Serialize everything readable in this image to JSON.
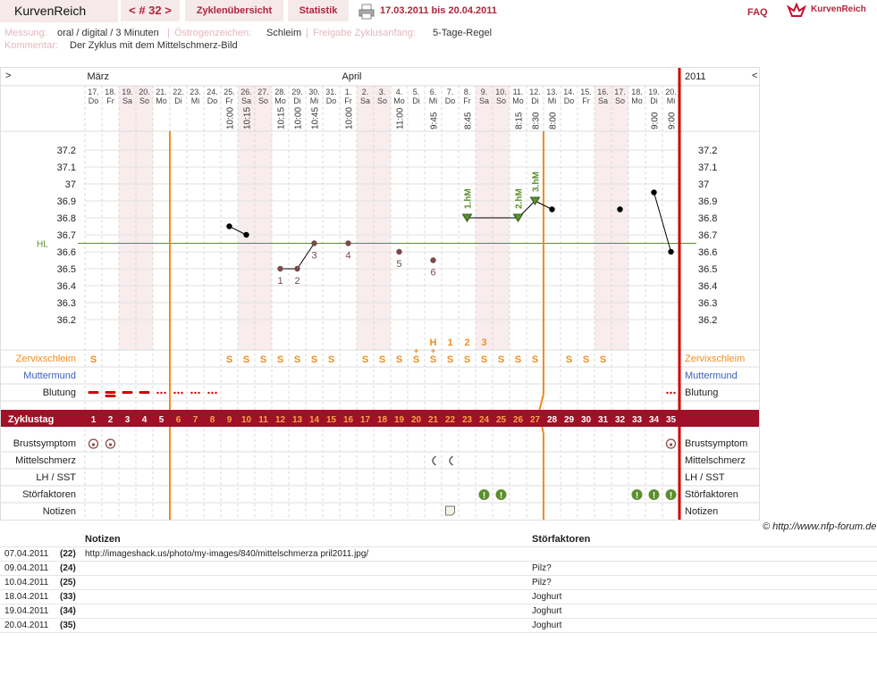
{
  "app": {
    "title": "KurvenReich",
    "cycle_nav": "< # 32 >",
    "tabs": [
      "Zyklenübersicht",
      "Statistik"
    ],
    "dates": "17.03.2011 bis 20.04.2011",
    "faq": "FAQ",
    "brand": "KurvenReich"
  },
  "meta": {
    "messung_label": "Messung:",
    "messung_value": "oral / digital / 3 Minuten",
    "oestrogen_label": "Östrogenzeichen:",
    "oestrogen_value": "Schleim",
    "freigabe_label": "Freigabe Zyklusanfang:",
    "freigabe_value": "5-Tage-Regel",
    "kommentar_label": "Kommentar:",
    "kommentar_value": "Der Zyklus mit dem Mittelschmerz-Bild"
  },
  "chart": {
    "nav_left": ">",
    "nav_right": "<",
    "year": "2011",
    "months": [
      {
        "label": "März",
        "col": 0
      },
      {
        "label": "April",
        "col": 15
      }
    ],
    "days": [
      {
        "d": "17.",
        "w": "Do"
      },
      {
        "d": "18.",
        "w": "Fr"
      },
      {
        "d": "19.",
        "w": "Sa"
      },
      {
        "d": "20.",
        "w": "So"
      },
      {
        "d": "21.",
        "w": "Mo"
      },
      {
        "d": "22.",
        "w": "Di"
      },
      {
        "d": "23.",
        "w": "Mi"
      },
      {
        "d": "24.",
        "w": "Do"
      },
      {
        "d": "25.",
        "w": "Fr"
      },
      {
        "d": "26.",
        "w": "Sa"
      },
      {
        "d": "27.",
        "w": "So"
      },
      {
        "d": "28.",
        "w": "Mo"
      },
      {
        "d": "29.",
        "w": "Di"
      },
      {
        "d": "30.",
        "w": "Mi"
      },
      {
        "d": "31.",
        "w": "Do"
      },
      {
        "d": "1.",
        "w": "Fr"
      },
      {
        "d": "2.",
        "w": "Sa"
      },
      {
        "d": "3.",
        "w": "So"
      },
      {
        "d": "4.",
        "w": "Mo"
      },
      {
        "d": "5.",
        "w": "Di"
      },
      {
        "d": "6.",
        "w": "Mi"
      },
      {
        "d": "7.",
        "w": "Do"
      },
      {
        "d": "8.",
        "w": "Fr"
      },
      {
        "d": "9.",
        "w": "Sa"
      },
      {
        "d": "10.",
        "w": "So"
      },
      {
        "d": "11.",
        "w": "Mo"
      },
      {
        "d": "12.",
        "w": "Di"
      },
      {
        "d": "13.",
        "w": "Mi"
      },
      {
        "d": "14.",
        "w": "Do"
      },
      {
        "d": "15.",
        "w": "Fr"
      },
      {
        "d": "16.",
        "w": "Sa"
      },
      {
        "d": "17.",
        "w": "So"
      },
      {
        "d": "18.",
        "w": "Mo"
      },
      {
        "d": "19.",
        "w": "Di"
      },
      {
        "d": "20.",
        "w": "Mi"
      }
    ],
    "weekend_cols": [
      2,
      3,
      9,
      10,
      16,
      17,
      23,
      24,
      30,
      31
    ],
    "times": {
      "8": "10:00",
      "9": "10:15",
      "11": "10:15",
      "12": "10:00",
      "13": "10:45",
      "15": "10:00",
      "18": "11:00",
      "20": "9:45",
      "22": "8:45",
      "25": "8:15",
      "26": "8:30",
      "27": "8:00",
      "33": "9:00",
      "34": "9:00"
    },
    "y_ticks": [
      "37.2",
      "37.1",
      "37",
      "36.9",
      "36.8",
      "36.7",
      "36.6",
      "36.5",
      "36.4",
      "36.3",
      "36.2"
    ],
    "hl_label": "HL",
    "hl_value": 36.65,
    "temps": [
      {
        "col": 8,
        "v": 36.75
      },
      {
        "col": 9,
        "v": 36.7
      },
      {
        "col": 11,
        "v": 36.5,
        "n": "1"
      },
      {
        "col": 12,
        "v": 36.5,
        "n": "2"
      },
      {
        "col": 13,
        "v": 36.65,
        "n": "3"
      },
      {
        "col": 15,
        "v": 36.65,
        "n": "4"
      },
      {
        "col": 18,
        "v": 36.6,
        "n": "5"
      },
      {
        "col": 20,
        "v": 36.55,
        "n": "6"
      },
      {
        "col": 22,
        "v": 36.8,
        "m": "1.hM"
      },
      {
        "col": 25,
        "v": 36.8,
        "m": "2.hM"
      },
      {
        "col": 26,
        "v": 36.9,
        "m": "3.hM"
      },
      {
        "col": 27,
        "v": 36.85
      },
      {
        "col": 31,
        "v": 36.85
      },
      {
        "col": 33,
        "v": 36.95
      },
      {
        "col": 34,
        "v": 36.6
      }
    ],
    "above_cervix": {
      "20": "H",
      "21": "1",
      "22": "2",
      "23": "3"
    },
    "rows": {
      "zervix": "Zervixschleim",
      "muttermund": "Muttermund",
      "blutung": "Blutung",
      "zyklustag": "Zyklustag",
      "brust": "Brustsymptom",
      "mittel": "Mittelschmerz",
      "lh": "LH / SST",
      "stoer": "Störfaktoren",
      "notizen": "Notizen"
    },
    "cervix": {
      "0": "S",
      "8": "S",
      "9": "S",
      "10": "S",
      "11": "S",
      "12": "S",
      "13": "S",
      "14": "S",
      "16": "S",
      "17": "S",
      "18": "S",
      "19": "S+",
      "20": "S+",
      "21": "S",
      "22": "S",
      "23": "S",
      "24": "S",
      "25": "S",
      "26": "S",
      "28": "S",
      "29": "S",
      "30": "S"
    },
    "cycle_days": [
      "1",
      "2",
      "3",
      "4",
      "5",
      "6",
      "7",
      "8",
      "9",
      "10",
      "11",
      "12",
      "13",
      "14",
      "15",
      "16",
      "17",
      "18",
      "19",
      "20",
      "21",
      "22",
      "23",
      "24",
      "25",
      "26",
      "27",
      "28",
      "29",
      "30",
      "31",
      "32",
      "33",
      "34",
      "35"
    ],
    "orange_days_from": 5,
    "orange_days_to": 26,
    "bleeding": {
      "0": "heavy",
      "1": "heavy2",
      "2": "heavy",
      "3": "heavy",
      "4": "light",
      "5": "light",
      "6": "light",
      "7": "light",
      "34": "light"
    },
    "brust_cols": [
      0,
      1,
      34
    ],
    "mittel_cols": [
      20,
      21
    ],
    "stoer_cols": [
      23,
      24,
      32,
      33,
      34
    ],
    "notiz_cols": [
      21
    ]
  },
  "copyright": "© http://www.nfp-forum.de",
  "notes": {
    "headers": [
      "Notizen",
      "Störfaktoren"
    ],
    "rows": [
      {
        "date": "07.04.2011",
        "day": "(22)",
        "note": "http://imageshack.us/photo/my-images/840/mittelschmerza pril2011.jpg/",
        "stoer": ""
      },
      {
        "date": "09.04.2011",
        "day": "(24)",
        "note": "",
        "stoer": "Pilz?"
      },
      {
        "date": "10.04.2011",
        "day": "(25)",
        "note": "",
        "stoer": "Pilz?"
      },
      {
        "date": "18.04.2011",
        "day": "(33)",
        "note": "",
        "stoer": "Joghurt"
      },
      {
        "date": "19.04.2011",
        "day": "(34)",
        "note": "",
        "stoer": "Joghurt"
      },
      {
        "date": "20.04.2011",
        "day": "(35)",
        "note": "",
        "stoer": "Joghurt"
      }
    ]
  },
  "colors": {
    "accent": "#b0253c",
    "orange": "#f08c1e",
    "green": "#5b8f2e",
    "blue": "#3b5fbf",
    "red": "#d00000"
  }
}
